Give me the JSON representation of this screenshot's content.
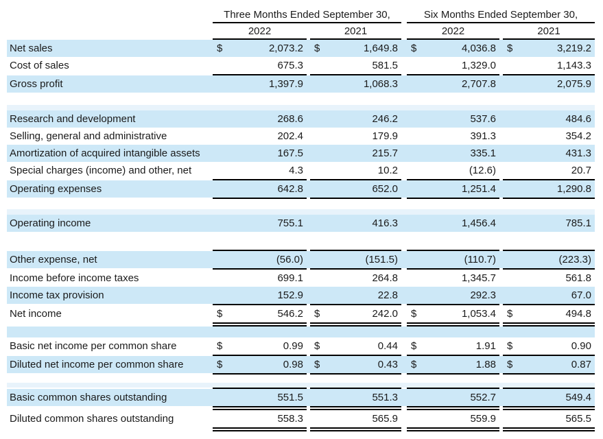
{
  "table": {
    "currency_symbol": "$",
    "column_groups": [
      "Three Months Ended September 30,",
      "Six Months Ended September 30,"
    ],
    "year_headers": [
      "2022",
      "2021",
      "2022",
      "2021"
    ],
    "rows": [
      {
        "type": "data",
        "label": "Net sales",
        "dollar": true,
        "bg": "blue",
        "values": [
          "2,073.2",
          "1,649.8",
          "4,036.8",
          "3,219.2"
        ]
      },
      {
        "type": "data",
        "label": "Cost of sales",
        "dollar": false,
        "bg": "white",
        "border_bottom": "single",
        "values": [
          "675.3",
          "581.5",
          "1,329.0",
          "1,143.3"
        ]
      },
      {
        "type": "data",
        "label": "Gross profit",
        "dollar": false,
        "bg": "blue",
        "values": [
          "1,397.9",
          "1,068.3",
          "2,707.8",
          "2,075.9"
        ]
      },
      {
        "type": "spacer",
        "bg": "white",
        "height": 18
      },
      {
        "type": "spacer",
        "bg": "lightblue",
        "height": 8
      },
      {
        "type": "data",
        "label": "Research and development",
        "dollar": false,
        "bg": "blue",
        "values": [
          "268.6",
          "246.2",
          "537.6",
          "484.6"
        ]
      },
      {
        "type": "data",
        "label": "Selling, general and administrative",
        "dollar": false,
        "bg": "white",
        "values": [
          "202.4",
          "179.9",
          "391.3",
          "354.2"
        ]
      },
      {
        "type": "data",
        "label": "Amortization of acquired intangible assets",
        "dollar": false,
        "bg": "blue",
        "values": [
          "167.5",
          "215.7",
          "335.1",
          "431.3"
        ]
      },
      {
        "type": "data",
        "label": "Special charges (income) and other, net",
        "dollar": false,
        "bg": "white",
        "border_bottom": "single",
        "values": [
          "4.3",
          "10.2",
          "(12.6)",
          "20.7"
        ]
      },
      {
        "type": "data",
        "label": "Operating expenses",
        "dollar": false,
        "bg": "blue",
        "border_bottom": "single",
        "values": [
          "642.8",
          "652.0",
          "1,251.4",
          "1,290.8"
        ]
      },
      {
        "type": "spacer",
        "bg": "white",
        "height": 15
      },
      {
        "type": "spacer",
        "bg": "lightblue",
        "height": 8
      },
      {
        "type": "data",
        "label": "Operating income",
        "dollar": false,
        "bg": "blue",
        "values": [
          "755.1",
          "416.3",
          "1,456.4",
          "785.1"
        ]
      },
      {
        "type": "spacer",
        "bg": "white",
        "height": 26
      },
      {
        "type": "data",
        "label": "Other expense, net",
        "dollar": false,
        "bg": "blue",
        "border_top": "single",
        "border_bottom": "single",
        "values": [
          "(56.0)",
          "(151.5)",
          "(110.7)",
          "(223.3)"
        ]
      },
      {
        "type": "data",
        "label": "Income before income taxes",
        "dollar": false,
        "bg": "white",
        "values": [
          "699.1",
          "264.8",
          "1,345.7",
          "561.8"
        ]
      },
      {
        "type": "data",
        "label": "Income tax provision",
        "dollar": false,
        "bg": "blue",
        "border_bottom": "single",
        "values": [
          "152.9",
          "22.8",
          "292.3",
          "67.0"
        ]
      },
      {
        "type": "data",
        "label": "Net income",
        "dollar": true,
        "bg": "white",
        "border_bottom": "double",
        "values": [
          "546.2",
          "242.0",
          "1,053.4",
          "494.8"
        ]
      },
      {
        "type": "spacer",
        "bg": "blue",
        "height": 16
      },
      {
        "type": "data",
        "label": "Basic net income per common share",
        "dollar": true,
        "bg": "white",
        "border_bottom": "single",
        "values": [
          "0.99",
          "0.44",
          "1.91",
          "0.90"
        ]
      },
      {
        "type": "data",
        "label": "Diluted net income per common share",
        "dollar": true,
        "bg": "blue",
        "border_bottom": "single",
        "values": [
          "0.98",
          "0.43",
          "1.88",
          "0.87"
        ]
      },
      {
        "type": "spacer",
        "bg": "white",
        "height": 12
      },
      {
        "type": "spacer",
        "bg": "lightblue",
        "height": 7
      },
      {
        "type": "data",
        "label": "Basic common shares outstanding",
        "dollar": false,
        "bg": "blue",
        "border_top": "single",
        "border_bottom": "double",
        "values": [
          "551.5",
          "551.3",
          "552.7",
          "549.4"
        ]
      },
      {
        "type": "data",
        "label": "Diluted common shares outstanding",
        "dollar": false,
        "bg": "white",
        "border_bottom": "double",
        "values": [
          "558.3",
          "565.9",
          "559.9",
          "565.5"
        ]
      }
    ]
  }
}
